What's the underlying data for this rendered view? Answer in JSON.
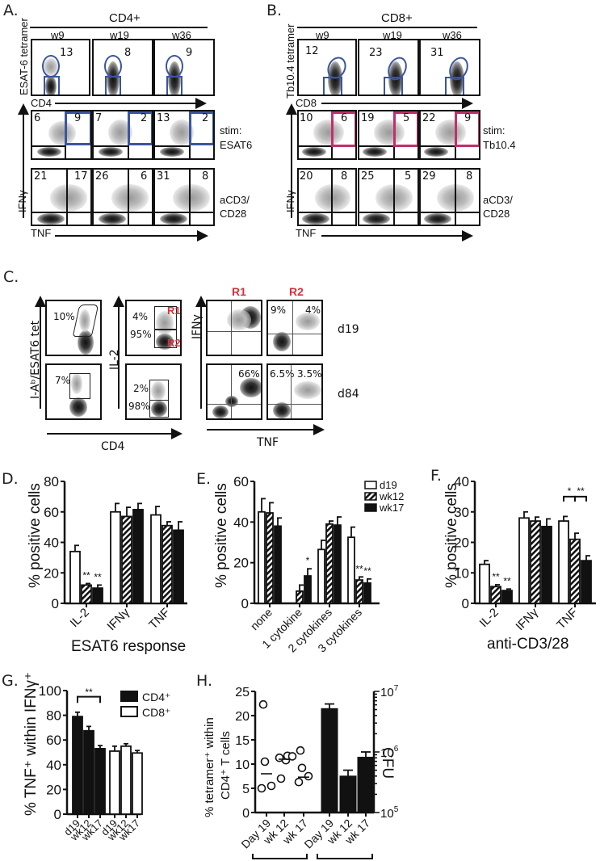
{
  "panels": {
    "A": {
      "label": "A.",
      "group_title": "CD4+",
      "timepoints": [
        "w9",
        "w19",
        "w36"
      ],
      "y_axis_top": "ESAT-6 tetramer",
      "x_axis_top": "CD4",
      "tetramer_percent": [
        "13",
        "8",
        "9"
      ],
      "esat6_row": {
        "label_line1": "stim:",
        "label_line2": "ESAT6",
        "ul": [
          "6",
          "7",
          "13"
        ],
        "ur": [
          "9",
          "2",
          "2"
        ]
      },
      "acd3_row": {
        "label_line1": "aCD3/",
        "label_line2": "CD28",
        "ul": [
          "21",
          "26",
          "31"
        ],
        "ur": [
          "17",
          "6",
          "8"
        ]
      },
      "y_axis_bottom": "IFNγ",
      "x_axis_bottom": "TNF"
    },
    "B": {
      "label": "B.",
      "group_title": "CD8+",
      "timepoints": [
        "w9",
        "w19",
        "w36"
      ],
      "y_axis_top": "Tb10.4 tetramer",
      "x_axis_top": "CD8",
      "tetramer_percent": [
        "12",
        "23",
        "31"
      ],
      "tb104_row": {
        "label_line1": "stim:",
        "label_line2": "Tb10.4",
        "ul": [
          "10",
          "19",
          "22"
        ],
        "ur": [
          "6",
          "5",
          "9"
        ]
      },
      "acd3_row": {
        "label_line1": "aCD3/",
        "label_line2": "CD28",
        "ul": [
          "20",
          "25",
          "29"
        ],
        "ur": [
          "8",
          "5",
          "8"
        ]
      },
      "y_axis_bottom": "IFNγ",
      "x_axis_bottom": "TNF"
    },
    "C": {
      "label": "C.",
      "y_axis_tet": "I-Aᵇ/ESAT6 tet",
      "y_axis_il2": "IL-2",
      "x_axis_cd4": "CD4",
      "y_axis_ifng": "IFNγ",
      "x_axis_tnf": "TNF",
      "tet_percent": [
        "10%",
        "7%"
      ],
      "il2_top": [
        "4%",
        "2%"
      ],
      "il2_bottom": [
        "95%",
        "98%"
      ],
      "gate_r1": "R1",
      "gate_r2": "R2",
      "r1_d84": "66%",
      "r2_d19": [
        "9%",
        "4%"
      ],
      "r2_d84": [
        "6.5%",
        "3.5%"
      ],
      "rows": [
        "d19",
        "d84"
      ]
    },
    "D": {
      "label": "D.",
      "ylabel": "% positive cells",
      "xlabel": "ESAT6 response",
      "sig": [
        "**",
        "**"
      ]
    },
    "E": {
      "label": "E.",
      "ylabel": "% positive cells",
      "sig_1": "*",
      "sig_3": [
        "**",
        "**"
      ],
      "legend": [
        "d19",
        "wk12",
        "wk17"
      ]
    },
    "F": {
      "label": "F.",
      "ylabel": "% positive cells",
      "xlabel": "anti-CD3/28",
      "sig_il2": [
        "**",
        "**"
      ],
      "sig_tnf": [
        "*",
        "**"
      ]
    },
    "G": {
      "label": "G.",
      "ylabel": "% TNF⁺ within IFNγ⁺",
      "sig": "**",
      "legend": [
        "CD4⁺",
        "CD8⁺"
      ]
    },
    "H": {
      "label": "H.",
      "ylabel_line1": "% tetramer⁺ within",
      "ylabel_line2": "CD4⁺ T cells",
      "ylabel_right": "CFU"
    }
  },
  "chart_data": [
    {
      "panel": "D",
      "type": "bar",
      "title": "",
      "xlabel": "ESAT6 response",
      "ylabel": "% positive cells",
      "categories": [
        "IL-2",
        "IFNγ",
        "TNF"
      ],
      "ylim": [
        0,
        80
      ],
      "yticks": [
        0,
        20,
        40,
        60,
        80
      ],
      "series": [
        {
          "name": "d19",
          "fill": "white",
          "values": [
            34,
            60,
            58
          ],
          "errors": [
            4,
            5.5,
            5.5
          ]
        },
        {
          "name": "wk12",
          "fill": "hatched",
          "values": [
            12,
            57,
            51
          ],
          "errors": [
            1,
            6,
            2.5
          ]
        },
        {
          "name": "wk17",
          "fill": "black",
          "values": [
            10,
            61.5,
            48
          ],
          "errors": [
            2,
            4,
            5.5
          ]
        }
      ],
      "annotations": [
        {
          "category": "IL-2",
          "series": "wk12",
          "text": "**"
        },
        {
          "category": "IL-2",
          "series": "wk17",
          "text": "**"
        }
      ]
    },
    {
      "panel": "E",
      "type": "bar",
      "title": "",
      "xlabel": "",
      "ylabel": "% positive cells",
      "categories": [
        "none",
        "1 cytokine",
        "2 cytokines",
        "3 cytokines"
      ],
      "ylim": [
        0,
        60
      ],
      "yticks": [
        0,
        20,
        40,
        60
      ],
      "series": [
        {
          "name": "d19",
          "fill": "white",
          "values": [
            45,
            0,
            26.5,
            32.5
          ],
          "errors": [
            6.5,
            0,
            4.5,
            5
          ]
        },
        {
          "name": "wk12",
          "fill": "hatched",
          "values": [
            44.5,
            6,
            39,
            11.5
          ],
          "errors": [
            5,
            3,
            1.5,
            1.5
          ]
        },
        {
          "name": "wk17",
          "fill": "black",
          "values": [
            38,
            13.5,
            38.5,
            10
          ],
          "errors": [
            4,
            3.5,
            4,
            2
          ]
        }
      ],
      "legend": {
        "entries": [
          "d19",
          "wk12",
          "wk17"
        ],
        "position": "upper right"
      },
      "annotations": [
        {
          "category": "1 cytokine",
          "series": "wk17",
          "text": "*"
        },
        {
          "category": "3 cytokines",
          "series": "wk12",
          "text": "**"
        },
        {
          "category": "3 cytokines",
          "series": "wk17",
          "text": "**"
        }
      ]
    },
    {
      "panel": "F",
      "type": "bar",
      "title": "",
      "xlabel": "anti-CD3/28",
      "ylabel": "% positive cells",
      "categories": [
        "IL-2",
        "IFNγ",
        "TNF"
      ],
      "ylim": [
        0,
        40
      ],
      "yticks": [
        0,
        10,
        20,
        30,
        40
      ],
      "series": [
        {
          "name": "d19",
          "fill": "white",
          "values": [
            12.8,
            28,
            27
          ],
          "errors": [
            1.2,
            2,
            1.5
          ]
        },
        {
          "name": "wk12",
          "fill": "hatched",
          "values": [
            5.5,
            27,
            21
          ],
          "errors": [
            0.6,
            1.3,
            2
          ]
        },
        {
          "name": "wk17",
          "fill": "black",
          "values": [
            4.2,
            25.2,
            14
          ],
          "errors": [
            0.5,
            2.5,
            1.6
          ]
        }
      ],
      "annotations": [
        {
          "category": "IL-2",
          "series": "wk12",
          "text": "**"
        },
        {
          "category": "IL-2",
          "series": "wk17",
          "text": "**"
        },
        {
          "category": "TNF",
          "bracket": [
            "d19",
            "wk12"
          ],
          "text": "*"
        },
        {
          "category": "TNF",
          "bracket": [
            "wk12",
            "wk17"
          ],
          "text": "**"
        }
      ]
    },
    {
      "panel": "G",
      "type": "bar",
      "title": "",
      "xlabel": "",
      "ylabel": "% TNF⁺ within IFNγ⁺",
      "categories": [
        "d19",
        "wk12",
        "wk17",
        "d19",
        "wk12",
        "wk17"
      ],
      "ylim": [
        0,
        100
      ],
      "yticks": [
        0,
        20,
        40,
        60,
        80,
        100
      ],
      "series": [
        {
          "name": "CD4⁺",
          "fill": "black",
          "values": [
            79,
            67.5,
            53
          ],
          "errors": [
            3.5,
            3.5,
            2.5
          ]
        },
        {
          "name": "CD8⁺",
          "fill": "white",
          "values": [
            51,
            55,
            49.5
          ],
          "errors": [
            4,
            2,
            2
          ]
        }
      ],
      "legend": {
        "entries": [
          "CD4⁺",
          "CD8⁺"
        ],
        "position": "upper right"
      },
      "annotations": [
        {
          "bracket": [
            "CD4⁺ d19",
            "CD4⁺ wk17"
          ],
          "text": "**"
        }
      ]
    },
    {
      "panel": "H",
      "type": "scatter+bar",
      "title": "",
      "ylabel_left": "% tetramer⁺ within CD4⁺ T cells",
      "ylim_left": [
        0,
        25
      ],
      "yticks_left": [
        0,
        5,
        10,
        15,
        20,
        25
      ],
      "ylabel_right": "CFU",
      "ylim_right_log10": [
        5,
        7
      ],
      "yticks_right": [
        "10^5",
        "10^6",
        "10^7"
      ],
      "scatter": {
        "categories": [
          "Day 19",
          "wk 12",
          "wk 17"
        ],
        "points": [
          [
            5,
            5.5,
            10.5,
            22.3
          ],
          [
            7,
            10.8,
            11.3,
            11.7,
            11.6
          ],
          [
            6.3,
            7.5,
            9.2,
            12.8
          ]
        ],
        "means": [
          8,
          11,
          7.3
        ]
      },
      "bars": {
        "categories": [
          "Day 19",
          "wk 12",
          "wk 17"
        ],
        "values_cfu": [
          5200000,
          400000,
          820000
        ],
        "errors_cfu": [
          1000000,
          100000,
          180000
        ]
      }
    }
  ]
}
